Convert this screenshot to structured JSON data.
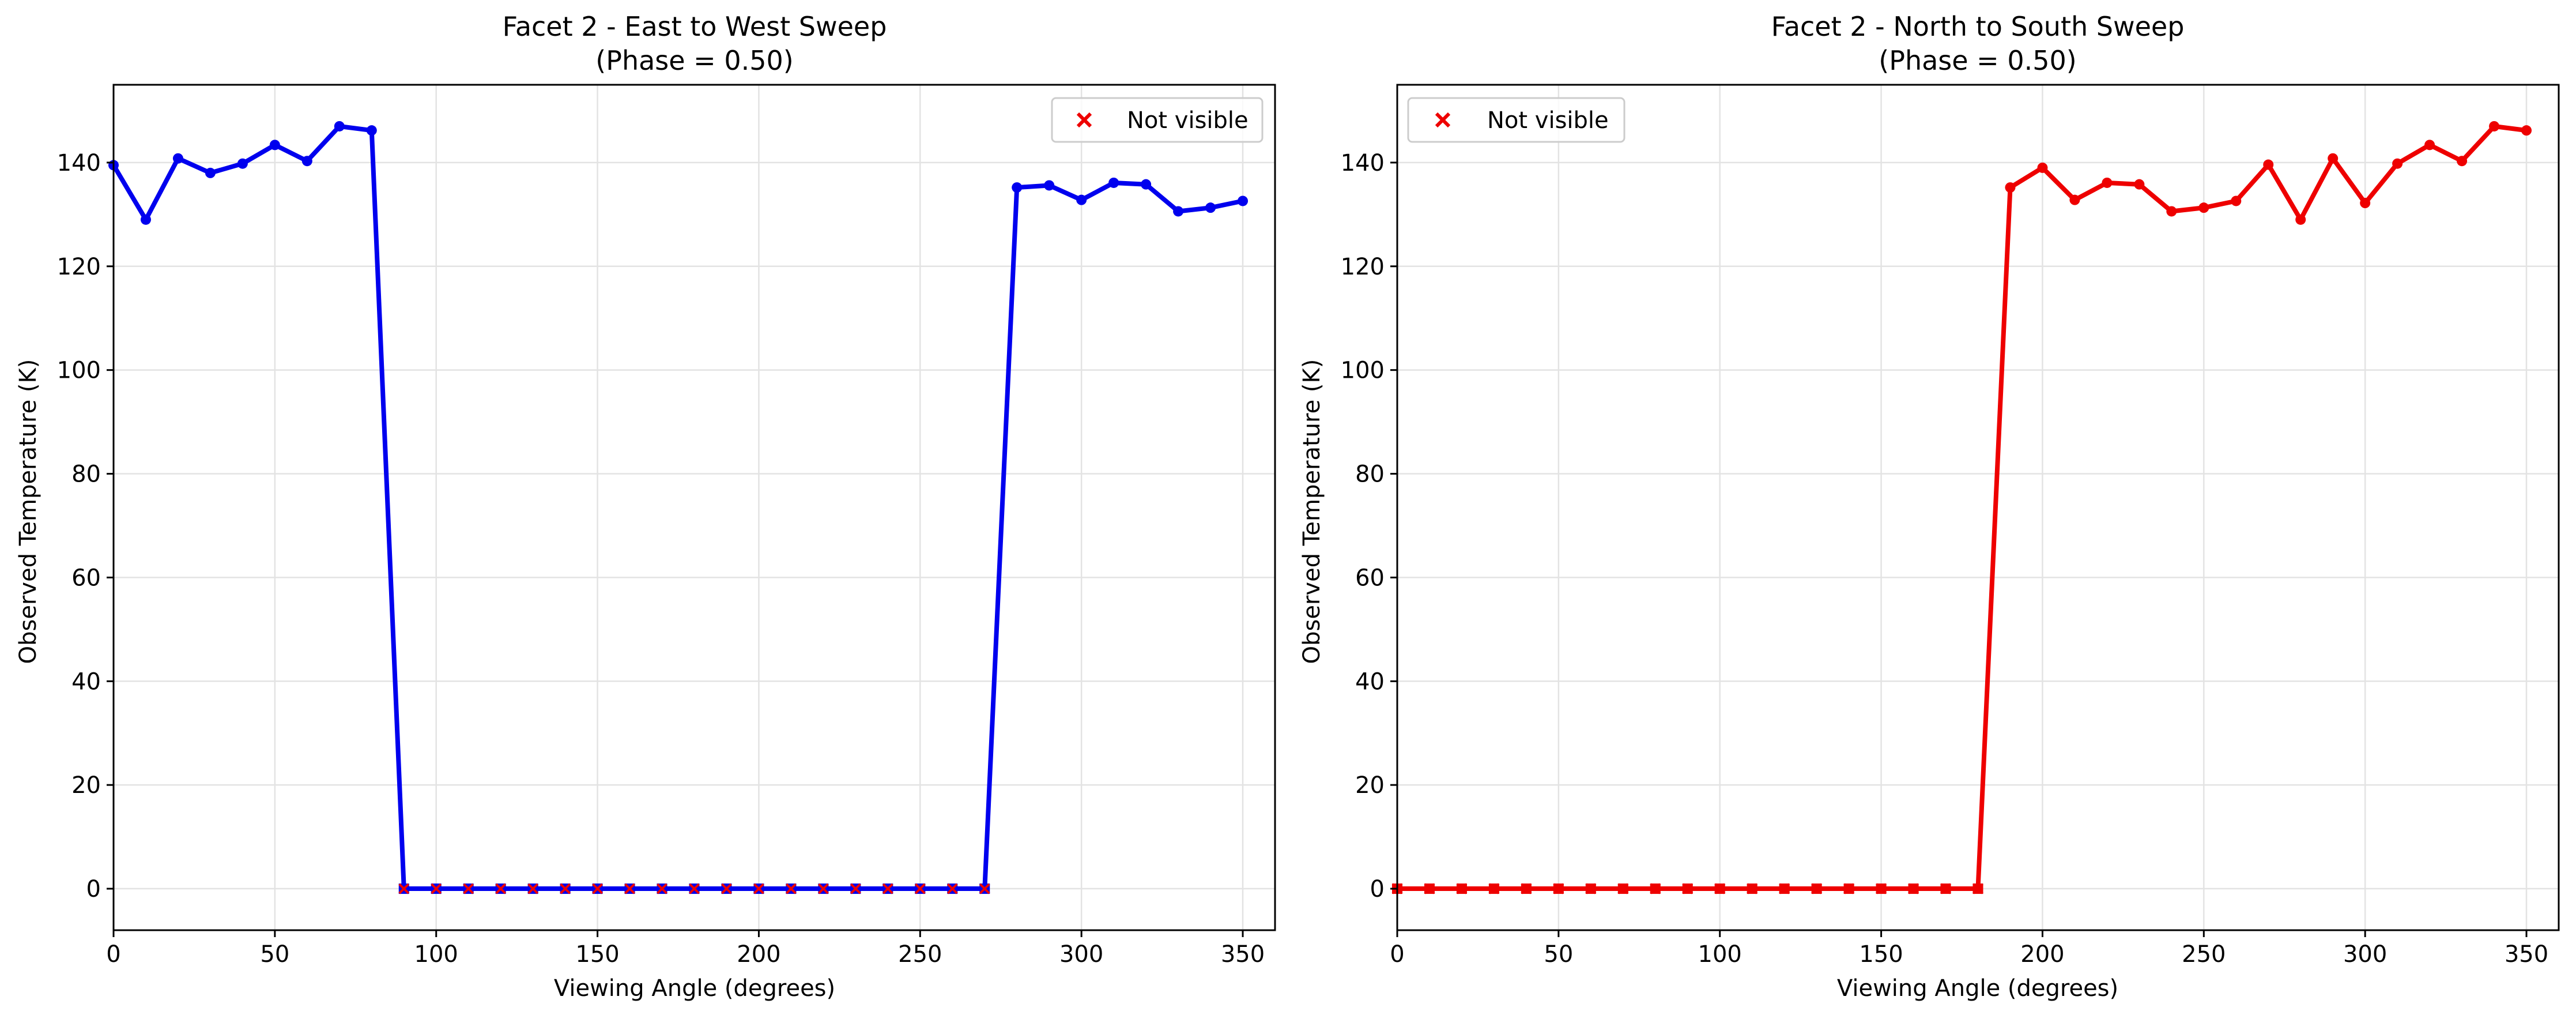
{
  "chart_data": [
    {
      "type": "line",
      "title_line1": "Facet 2 - East to West Sweep",
      "title_line2": "(Phase = 0.50)",
      "xlabel": "Viewing Angle (degrees)",
      "ylabel": "Observed Temperature (K)",
      "xlim": [
        0,
        360
      ],
      "ylim": [
        -8,
        155
      ],
      "xticks": [
        0,
        50,
        100,
        150,
        200,
        250,
        300,
        350
      ],
      "yticks": [
        0,
        20,
        40,
        60,
        80,
        100,
        120,
        140
      ],
      "grid": true,
      "legend_position": "top-right",
      "color": "#0000ee",
      "legend": [
        {
          "name": "Not visible",
          "marker": "x",
          "color": "#ee0000"
        }
      ],
      "x": [
        0,
        10,
        20,
        30,
        40,
        50,
        60,
        70,
        80,
        90,
        100,
        110,
        120,
        130,
        140,
        150,
        160,
        170,
        180,
        190,
        200,
        210,
        220,
        230,
        240,
        250,
        260,
        270,
        280,
        290,
        300,
        310,
        320,
        330,
        340,
        350
      ],
      "y": [
        139.5,
        129.0,
        140.8,
        138.0,
        139.8,
        143.4,
        140.3,
        147.0,
        146.2,
        0,
        0,
        0,
        0,
        0,
        0,
        0,
        0,
        0,
        0,
        0,
        0,
        0,
        0,
        0,
        0,
        0,
        0,
        0,
        135.2,
        135.6,
        132.8,
        136.1,
        135.8,
        130.6,
        131.3,
        132.6
      ],
      "visible": [
        1,
        1,
        1,
        1,
        1,
        1,
        1,
        1,
        1,
        0,
        0,
        0,
        0,
        0,
        0,
        0,
        0,
        0,
        0,
        0,
        0,
        0,
        0,
        0,
        0,
        0,
        0,
        0,
        1,
        1,
        1,
        1,
        1,
        1,
        1,
        1
      ]
    },
    {
      "type": "line",
      "title_line1": "Facet 2 - North to South Sweep",
      "title_line2": "(Phase = 0.50)",
      "xlabel": "Viewing Angle (degrees)",
      "ylabel": "Observed Temperature (K)",
      "xlim": [
        0,
        360
      ],
      "ylim": [
        -8,
        155
      ],
      "xticks": [
        0,
        50,
        100,
        150,
        200,
        250,
        300,
        350
      ],
      "yticks": [
        0,
        20,
        40,
        60,
        80,
        100,
        120,
        140
      ],
      "grid": true,
      "legend_position": "top-left",
      "color": "#ee0000",
      "legend": [
        {
          "name": "Not visible",
          "marker": "x",
          "color": "#ee0000"
        }
      ],
      "x": [
        0,
        10,
        20,
        30,
        40,
        50,
        60,
        70,
        80,
        90,
        100,
        110,
        120,
        130,
        140,
        150,
        160,
        170,
        180,
        190,
        200,
        210,
        220,
        230,
        240,
        250,
        260,
        270,
        280,
        290,
        300,
        310,
        320,
        330,
        340,
        350
      ],
      "y": [
        0,
        0,
        0,
        0,
        0,
        0,
        0,
        0,
        0,
        0,
        0,
        0,
        0,
        0,
        0,
        0,
        0,
        0,
        0,
        135.2,
        139.0,
        132.8,
        136.1,
        135.8,
        130.6,
        131.3,
        132.6,
        139.6,
        129.0,
        140.8,
        132.2,
        139.8,
        143.4,
        140.3,
        147.0,
        146.2
      ],
      "visible": [
        0,
        0,
        0,
        0,
        0,
        0,
        0,
        0,
        0,
        0,
        0,
        0,
        0,
        0,
        0,
        0,
        0,
        0,
        0,
        1,
        1,
        1,
        1,
        1,
        1,
        1,
        1,
        1,
        1,
        1,
        1,
        1,
        1,
        1,
        1,
        1
      ]
    }
  ]
}
